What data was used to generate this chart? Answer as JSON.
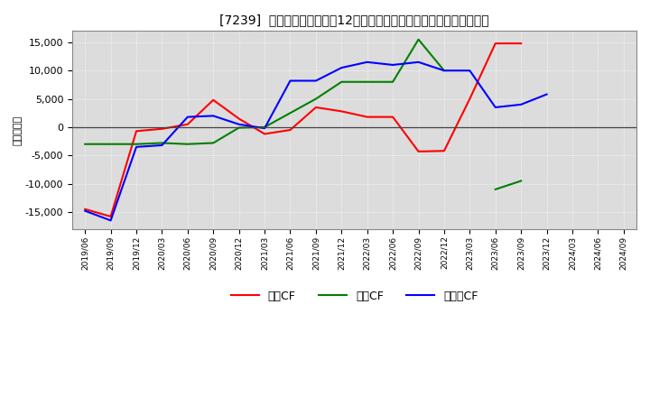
{
  "title": "[7239]  キャッシュフローの12か月移動合計の対前年同期増減額の推移",
  "ylabel": "（百万円）",
  "background_color": "#ffffff",
  "plot_background": "#dcdcdc",
  "x_labels": [
    "2019/06",
    "2019/09",
    "2019/12",
    "2020/03",
    "2020/06",
    "2020/09",
    "2020/12",
    "2021/03",
    "2021/06",
    "2021/09",
    "2021/12",
    "2022/03",
    "2022/06",
    "2022/09",
    "2022/12",
    "2023/03",
    "2023/06",
    "2023/09",
    "2023/12",
    "2024/03",
    "2024/06",
    "2024/09"
  ],
  "operating_cf": [
    -14500,
    -15800,
    -700,
    -300,
    500,
    4800,
    1500,
    -1200,
    -500,
    3500,
    2800,
    1800,
    1800,
    -4300,
    -4200,
    5000,
    14800,
    14800,
    null,
    null,
    null,
    null
  ],
  "investing_cf": [
    -3000,
    -3000,
    -3000,
    -2800,
    -3000,
    -2800,
    -100,
    0,
    2500,
    5000,
    8000,
    8000,
    8000,
    15500,
    10000,
    null,
    -11000,
    -9500,
    null,
    null,
    null,
    null
  ],
  "free_cf": [
    -14800,
    -16500,
    -3500,
    -3200,
    1800,
    2000,
    500,
    -200,
    8200,
    8200,
    10500,
    11500,
    11000,
    11500,
    10000,
    10000,
    3500,
    4000,
    5800,
    null,
    null,
    null
  ],
  "ylim": [
    -18000,
    17000
  ],
  "yticks": [
    -15000,
    -10000,
    -5000,
    0,
    5000,
    10000,
    15000
  ],
  "line_color_operating": "#ff0000",
  "line_color_investing": "#008000",
  "line_color_free": "#0000ff",
  "legend_labels": [
    "営業CF",
    "投資CF",
    "フリーCF"
  ]
}
